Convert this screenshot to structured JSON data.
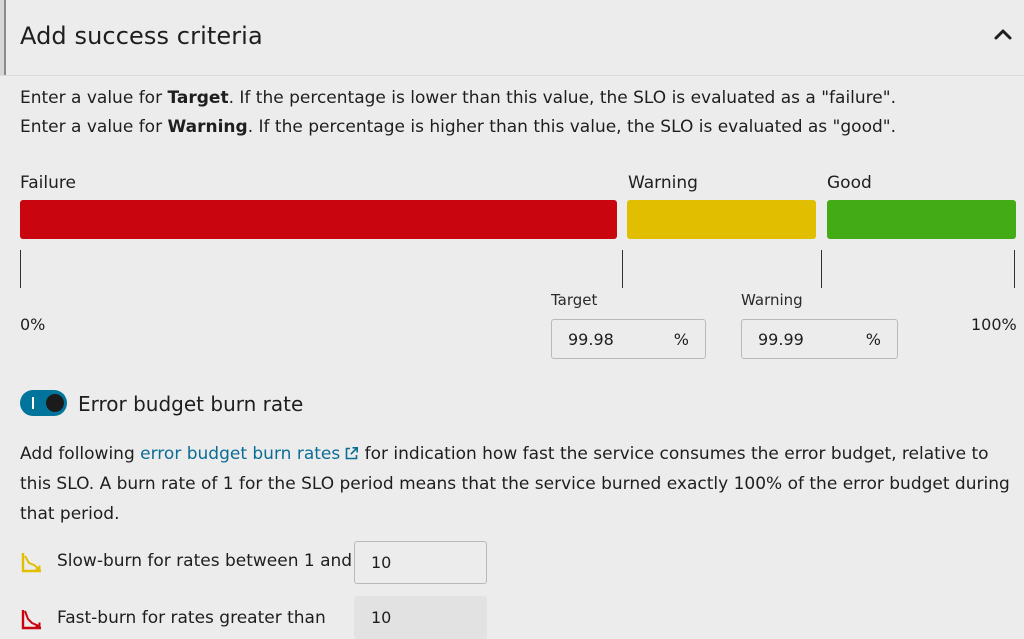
{
  "section": {
    "title": "Add success criteria",
    "collapse_icon": "chevron-up-icon"
  },
  "description": {
    "line1": {
      "pre": "Enter a value for ",
      "bold": "Target",
      "post": ". If the percentage is lower than this value, the SLO is evaluated as a \"failure\"."
    },
    "line2": {
      "pre": "Enter a value for ",
      "bold": "Warning",
      "post": ". If the percentage is higher than this value, the SLO is evaluated as \"good\"."
    }
  },
  "zones": {
    "failure": {
      "label": "Failure",
      "color": "#c9060f"
    },
    "warning": {
      "label": "Warning",
      "color": "#e1bf00"
    },
    "good": {
      "label": "Good",
      "color": "#43ab16"
    }
  },
  "scale": {
    "min_label": "0%",
    "max_label": "100%"
  },
  "target": {
    "label": "Target",
    "value": "99.98",
    "unit": "%"
  },
  "warning": {
    "label": "Warning",
    "value": "99.99",
    "unit": "%"
  },
  "burn_rate": {
    "toggle_on": true,
    "label": "Error budget burn rate",
    "desc_pre": "Add following ",
    "link_text": "error budget burn rates",
    "desc_post": " for indication how fast the service consumes the error budget, relative to this SLO. A burn rate of 1 for the SLO period means that the service burned exactly 100% of the error budget during that period.",
    "slow": {
      "label": "Slow-burn for rates between 1 and",
      "value": "10",
      "icon": "slow-burn-icon",
      "color": "#e1bf00"
    },
    "fast": {
      "label": "Fast-burn for rates greater than",
      "value": "10",
      "icon": "fast-burn-icon",
      "color": "#c9060f"
    }
  }
}
